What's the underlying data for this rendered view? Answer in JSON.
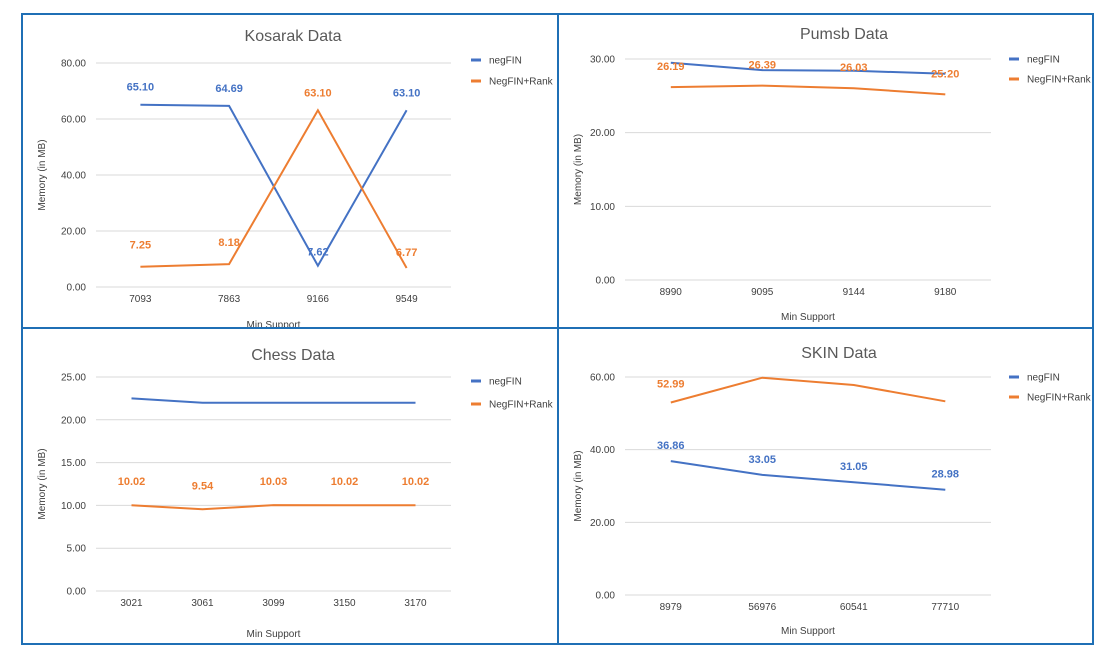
{
  "chart_data": [
    {
      "type": "line",
      "title": "Kosarak Data",
      "xlabel": "Min Support",
      "ylabel": "Memory (in MB)",
      "categories": [
        "7093",
        "7863",
        "9166",
        "9549"
      ],
      "yticks": [
        "0.00",
        "20.00",
        "40.00",
        "60.00",
        "80.00"
      ],
      "ylim": [
        0,
        80
      ],
      "grid": true,
      "legend_position": "top-right",
      "series": [
        {
          "name": "negFIN",
          "color": "#4472c4",
          "values": [
            65.1,
            64.69,
            7.62,
            63.1
          ],
          "labels": [
            "65.10",
            "64.69",
            "7.62",
            "63.10"
          ]
        },
        {
          "name": "NegFIN+Rank",
          "color": "#ed7d31",
          "values": [
            7.25,
            8.18,
            63.1,
            6.77
          ],
          "labels": [
            "7.25",
            "8.18",
            "63.10",
            "6.77"
          ]
        }
      ]
    },
    {
      "type": "line",
      "title": "Pumsb Data",
      "xlabel": "Min Support",
      "ylabel": "Memory (in MB)",
      "categories": [
        "8990",
        "9095",
        "9144",
        "9180"
      ],
      "yticks": [
        "0.00",
        "10.00",
        "20.00",
        "30.00"
      ],
      "ylim": [
        0,
        30
      ],
      "grid": true,
      "legend_position": "top-right",
      "series": [
        {
          "name": "negFIN",
          "color": "#4472c4",
          "values": [
            29.5,
            28.5,
            28.4,
            28.0
          ],
          "labels": [
            "",
            "",
            "",
            ""
          ]
        },
        {
          "name": "NegFIN+Rank",
          "color": "#ed7d31",
          "values": [
            26.19,
            26.39,
            26.03,
            25.2
          ],
          "labels": [
            "26.19",
            "26.39",
            "26.03",
            "25:20"
          ]
        }
      ]
    },
    {
      "type": "line",
      "title": "Chess Data",
      "xlabel": "Min Support",
      "ylabel": "Memory (in MB)",
      "categories": [
        "3021",
        "3061",
        "3099",
        "3150",
        "3170"
      ],
      "yticks": [
        "0.00",
        "5.00",
        "10.00",
        "15.00",
        "20.00",
        "25.00"
      ],
      "ylim": [
        0,
        25
      ],
      "grid": true,
      "legend_position": "top-right",
      "series": [
        {
          "name": "negFIN",
          "color": "#4472c4",
          "values": [
            22.5,
            22.0,
            22.0,
            22.0,
            22.0
          ],
          "labels": [
            "",
            "",
            "",
            "",
            ""
          ]
        },
        {
          "name": "NegFIN+Rank",
          "color": "#ed7d31",
          "values": [
            10.02,
            9.54,
            10.03,
            10.02,
            10.02
          ],
          "labels": [
            "10.02",
            "9.54",
            "10.03",
            "10.02",
            "10.02"
          ]
        }
      ]
    },
    {
      "type": "line",
      "title": "SKIN Data",
      "xlabel": "Min Support",
      "ylabel": "Memory (in MB)",
      "categories": [
        "8979",
        "56976",
        "60541",
        "77710"
      ],
      "yticks": [
        "0.00",
        "20.00",
        "40.00",
        "60.00"
      ],
      "ylim": [
        0,
        60
      ],
      "grid": true,
      "legend_position": "top-right",
      "series": [
        {
          "name": "negFIN",
          "color": "#4472c4",
          "values": [
            36.86,
            33.05,
            31.05,
            28.98
          ],
          "labels": [
            "36.86",
            "33.05",
            "31.05",
            "28.98"
          ]
        },
        {
          "name": "NegFIN+Rank",
          "color": "#ed7d31",
          "values": [
            52.99,
            59.8,
            57.8,
            53.3
          ],
          "labels": [
            "52.99",
            "",
            "",
            ""
          ]
        }
      ]
    }
  ]
}
